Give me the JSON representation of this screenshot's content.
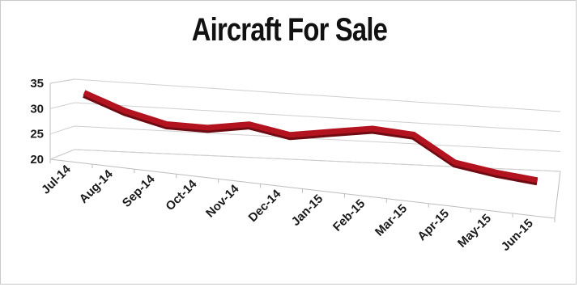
{
  "chart_data": {
    "type": "line",
    "title": "Aircraft For Sale",
    "categories": [
      "Jul-14",
      "Aug-14",
      "Sep-14",
      "Oct-14",
      "Nov-14",
      "Dec-14",
      "Jan-15",
      "Feb-15",
      "Mar-15",
      "Apr-15",
      "May-15",
      "Jun-15"
    ],
    "series": [
      {
        "values": [
          33,
          30,
          28,
          28,
          29.5,
          28,
          29.5,
          31,
          30.5,
          25,
          23.5,
          22.5
        ]
      }
    ],
    "y_ticks": [
      "20",
      "25",
      "30",
      "35"
    ],
    "ylim": [
      20,
      35
    ],
    "grid": true,
    "three_d": true,
    "legend": "none",
    "series_color": "#b3121f"
  }
}
